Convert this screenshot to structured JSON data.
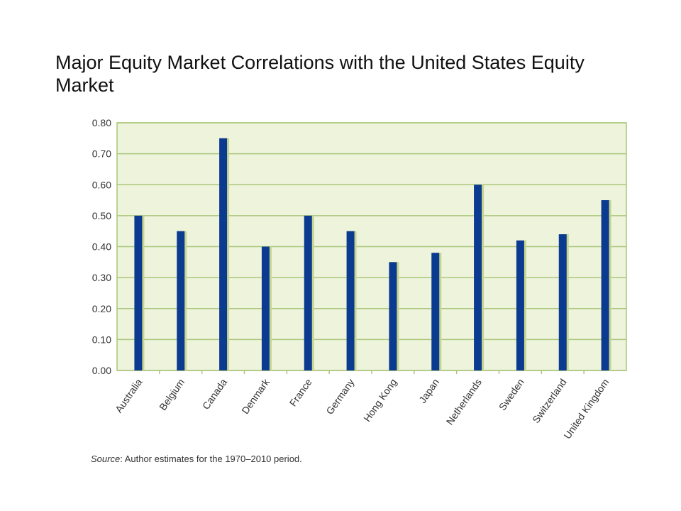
{
  "chart_data": {
    "type": "bar",
    "title": "Major Equity Market Correlations with the United States Equity Market",
    "categories": [
      "Australia",
      "Belgium",
      "Canada",
      "Denmark",
      "France",
      "Germany",
      "Hong Kong",
      "Japan",
      "Netherlands",
      "Sweden",
      "Switzerland",
      "United Kingdom"
    ],
    "values": [
      0.5,
      0.45,
      0.75,
      0.4,
      0.5,
      0.45,
      0.35,
      0.38,
      0.6,
      0.42,
      0.44,
      0.55
    ],
    "ylim": [
      0,
      0.8
    ],
    "yticks": [
      "0.00",
      "0.10",
      "0.20",
      "0.30",
      "0.40",
      "0.50",
      "0.60",
      "0.70",
      "0.80"
    ],
    "xlabel": "",
    "ylabel": "",
    "grid": true,
    "colors": {
      "bar": "#0b3a91",
      "bar_shadow": "#c6d690",
      "plot_background": "#eef3dc",
      "grid": "#a9c77a",
      "border": "#a9c77a"
    }
  },
  "source": {
    "label": "Source",
    "text": ": Author estimates for the 1970–2010 period."
  }
}
